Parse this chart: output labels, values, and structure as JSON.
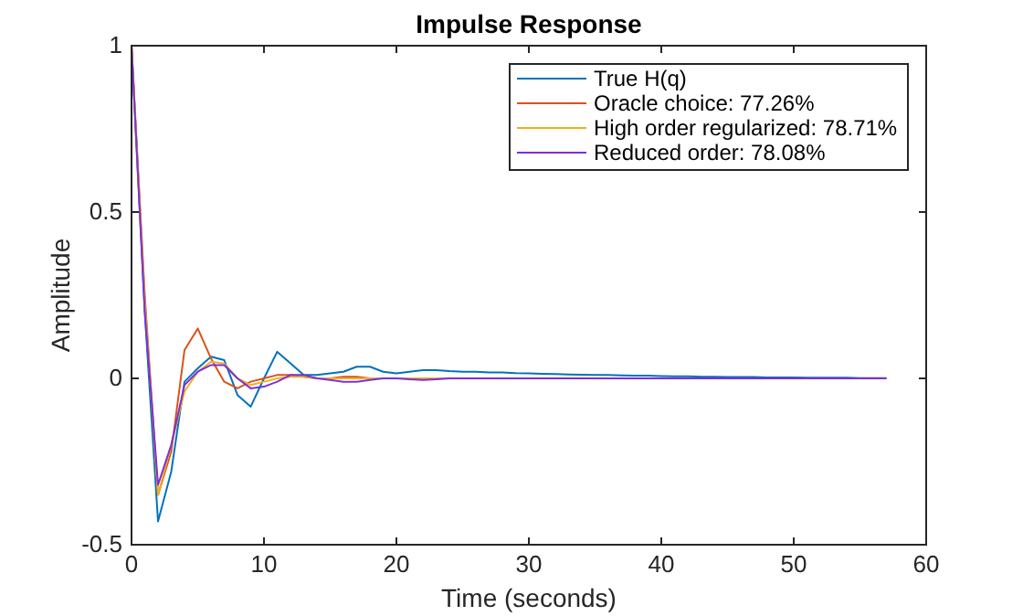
{
  "chart_data": {
    "type": "line",
    "title": "Impulse Response",
    "xlabel": "Time (seconds)",
    "ylabel": "Amplitude",
    "x": [
      0,
      1,
      2,
      3,
      4,
      5,
      6,
      7,
      8,
      9,
      10,
      11,
      12,
      13,
      14,
      15,
      16,
      17,
      18,
      19,
      20,
      21,
      22,
      23,
      24,
      25,
      26,
      27,
      28,
      29,
      30,
      31,
      32,
      33,
      34,
      35,
      36,
      37,
      38,
      39,
      40,
      41,
      42,
      43,
      44,
      45,
      46,
      47,
      48,
      49,
      50,
      51,
      52,
      53,
      54,
      55,
      56,
      57
    ],
    "series": [
      {
        "name": "True H(q)",
        "color": "#0072bd",
        "values": [
          1,
          0.2,
          -0.43,
          -0.28,
          -0.01,
          0.03,
          0.065,
          0.055,
          -0.05,
          -0.085,
          0,
          0.08,
          0.045,
          0.01,
          0.01,
          0.015,
          0.02,
          0.035,
          0.035,
          0.02,
          0.015,
          0.02,
          0.025,
          0.025,
          0.022,
          0.02,
          0.02,
          0.018,
          0.018,
          0.016,
          0.015,
          0.014,
          0.013,
          0.012,
          0.011,
          0.01,
          0.01,
          0.009,
          0.008,
          0.008,
          0.007,
          0.006,
          0.006,
          0.005,
          0.005,
          0.004,
          0.004,
          0.004,
          0.003,
          0.003,
          0.003,
          0.002,
          0.002,
          0.002,
          0.002,
          0.001,
          0.001,
          0.001
        ]
      },
      {
        "name": "Oracle choice: 77.26%",
        "color": "#d95319",
        "values": [
          1,
          0.25,
          -0.35,
          -0.22,
          0.085,
          0.15,
          0.06,
          -0.01,
          -0.03,
          -0.01,
          0,
          0.01,
          0.01,
          0.005,
          0,
          0,
          0.005,
          0.005,
          0,
          0,
          0,
          0,
          0,
          0,
          0,
          null,
          null,
          null,
          null,
          null,
          null,
          null,
          null,
          null,
          null,
          null,
          null,
          null,
          null,
          null,
          null,
          null,
          null,
          null,
          null,
          null,
          null,
          null,
          null,
          null,
          null,
          null,
          null,
          null,
          null,
          null,
          null,
          null
        ]
      },
      {
        "name": "High order regularized: 78.71%",
        "color": "#edb120",
        "values": [
          1,
          0.23,
          -0.35,
          -0.2,
          -0.04,
          0.02,
          0.05,
          0.045,
          0,
          -0.02,
          -0.01,
          0,
          0.005,
          0.005,
          0,
          0,
          0,
          0,
          0,
          0,
          0,
          0,
          0,
          0,
          0,
          null,
          null,
          null,
          null,
          null,
          null,
          null,
          null,
          null,
          null,
          null,
          null,
          null,
          null,
          null,
          null,
          null,
          null,
          null,
          null,
          null,
          null,
          null,
          null,
          null,
          null,
          null,
          null,
          null,
          null,
          null,
          null,
          null
        ]
      },
      {
        "name": "Reduced order: 78.08%",
        "color": "#7e2fd8",
        "values": [
          1,
          0.2,
          -0.32,
          -0.2,
          -0.02,
          0.02,
          0.04,
          0.04,
          0,
          -0.03,
          -0.025,
          -0.01,
          0.01,
          0.01,
          0,
          -0.005,
          -0.01,
          -0.01,
          -0.005,
          0,
          0,
          -0.003,
          -0.005,
          -0.003,
          0,
          0,
          0,
          0,
          0,
          0,
          0,
          0,
          0,
          0,
          0,
          0,
          0,
          0,
          0,
          0,
          0,
          0,
          0,
          0,
          0,
          0,
          0,
          0,
          0,
          0,
          0,
          0,
          0,
          0,
          0,
          0,
          0,
          0
        ]
      }
    ],
    "xlim": [
      0,
      60
    ],
    "xticks": [
      0,
      10,
      20,
      30,
      40,
      50,
      60
    ],
    "ylim": [
      -0.5,
      1
    ],
    "yticks": [
      -0.5,
      0,
      0.5,
      1
    ],
    "legend": "top right",
    "grid": false
  }
}
